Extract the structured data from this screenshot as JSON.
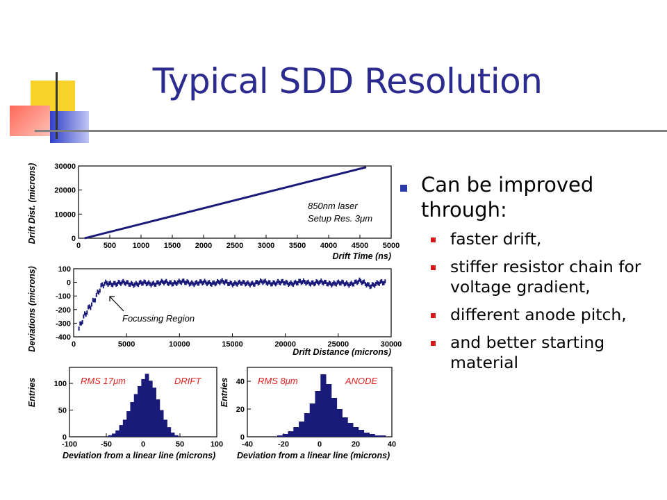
{
  "slide": {
    "title": "Typical SDD Resolution",
    "bullets": [
      {
        "text": "Can be improved through:",
        "subs": [
          "faster drift,",
          "stiffer resistor chain for voltage gradient,",
          "different anode pitch,",
          "and better starting material"
        ]
      }
    ]
  },
  "figure": {
    "top_plot": {
      "ylabel": "Drift Dist. (microns)",
      "xlabel": "Drift Time (ns)",
      "y_ticks": [
        "0",
        "10000",
        "20000",
        "30000"
      ],
      "x_ticks": [
        "0",
        "500",
        "1000",
        "1500",
        "2000",
        "2500",
        "3000",
        "3500",
        "4000",
        "4500",
        "5000"
      ],
      "note_line1": "850nm laser",
      "note_line2": "Setup Res. 3μm"
    },
    "middle_plot": {
      "ylabel": "Deviations (microns)",
      "xlabel": "Drift Distance (microns)",
      "y_ticks": [
        "100",
        "0",
        "-100",
        "-200",
        "-300",
        "-400"
      ],
      "x_ticks": [
        "0",
        "5000",
        "10000",
        "15000",
        "20000",
        "25000",
        "30000"
      ],
      "annotation": "Focussing Region"
    },
    "hist_left": {
      "ylabel": "Entries",
      "xlabel": "Deviation from a linear line (microns)",
      "y_ticks": [
        "0",
        "50",
        "100"
      ],
      "x_ticks": [
        "-100",
        "-50",
        "0",
        "50",
        "100"
      ],
      "rms": "RMS  17μm",
      "tag": "DRIFT"
    },
    "hist_right": {
      "ylabel": "Entries",
      "xlabel": "Deviation from a linear line (microns)",
      "y_ticks": [
        "0",
        "20",
        "40"
      ],
      "x_ticks": [
        "-40",
        "-20",
        "0",
        "20",
        "40"
      ],
      "rms": "RMS  8μm",
      "tag": "ANODE"
    }
  },
  "chart_data": [
    {
      "type": "line",
      "xlabel": "Drift Time (ns)",
      "ylabel": "Drift Dist. (microns)",
      "xlim": [
        0,
        5000
      ],
      "ylim": [
        0,
        30000
      ],
      "series": [
        {
          "x": [
            100,
            4600
          ],
          "y": [
            0,
            29500
          ]
        }
      ],
      "color": "#1a1a7a"
    },
    {
      "type": "scatter",
      "xlabel": "Drift Distance (microns)",
      "ylabel": "Deviations (microns)",
      "xlim": [
        0,
        30000
      ],
      "ylim": [
        -400,
        100
      ],
      "series": [
        {
          "x": [
            500,
            1000,
            1500,
            2000,
            2500,
            3000,
            4000,
            6000,
            8000,
            10000,
            12000,
            14000,
            16000,
            18000,
            20000,
            22000,
            24000,
            26000,
            27000,
            28000,
            29500
          ],
          "y": [
            -340,
            -260,
            -180,
            -110,
            -50,
            -10,
            -5,
            -10,
            -5,
            0,
            -5,
            0,
            -10,
            0,
            -5,
            0,
            -5,
            -10,
            5,
            -20,
            0
          ]
        }
      ],
      "color": "#1a1a7a"
    },
    {
      "type": "bar",
      "xlabel": "Deviation from a linear line (microns)",
      "ylabel": "Entries",
      "xlim": [
        -100,
        100
      ],
      "ylim": [
        0,
        130
      ],
      "x": [
        -45,
        -40,
        -35,
        -30,
        -25,
        -20,
        -15,
        -10,
        -5,
        0,
        5,
        10,
        15,
        20,
        25,
        30,
        35,
        40,
        45
      ],
      "values": [
        3,
        6,
        12,
        22,
        32,
        48,
        65,
        80,
        95,
        108,
        118,
        105,
        92,
        70,
        50,
        32,
        18,
        8,
        3
      ],
      "color": "#1a1a7a"
    },
    {
      "type": "bar",
      "xlabel": "Deviation from a linear line (microns)",
      "ylabel": "Entries",
      "xlim": [
        -40,
        40
      ],
      "ylim": [
        0,
        50
      ],
      "x": [
        -22,
        -19,
        -16,
        -13,
        -10,
        -7,
        -4,
        -1,
        2,
        5,
        8,
        11,
        14,
        17,
        20,
        23,
        26,
        29,
        32,
        35
      ],
      "values": [
        1,
        2,
        4,
        7,
        11,
        17,
        24,
        33,
        45,
        38,
        28,
        20,
        14,
        10,
        7,
        5,
        3,
        2,
        1,
        1
      ],
      "color": "#1a1a7a"
    }
  ]
}
